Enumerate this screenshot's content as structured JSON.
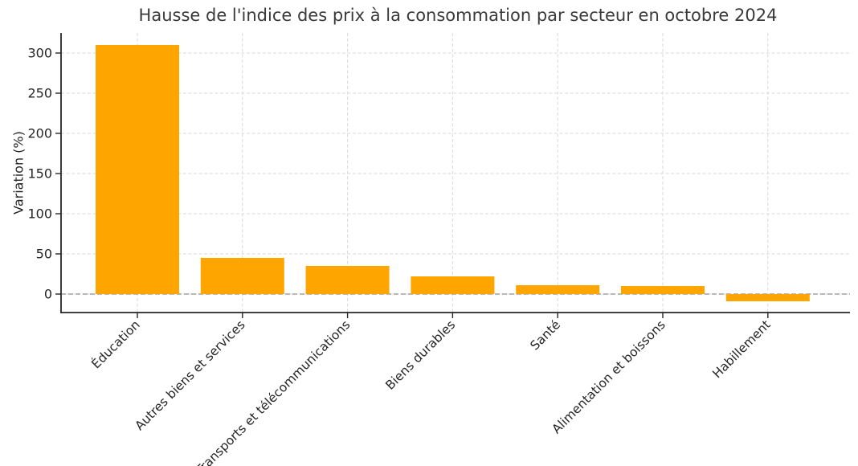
{
  "chart_data": {
    "type": "bar",
    "title": "Hausse de l'indice des prix à la consommation par secteur en octobre 2024",
    "ylabel": "Variation (%)",
    "categories": [
      "Éducation",
      "Autres biens et services",
      "Transports et télécommunications",
      "Biens durables",
      "Santé",
      "Alimentation et boissons",
      "Habillement"
    ],
    "values": [
      310,
      45,
      35,
      22,
      11,
      10,
      -9
    ],
    "yticks": [
      0,
      50,
      100,
      150,
      200,
      250,
      300
    ],
    "ylim": [
      -23,
      325
    ],
    "bar_color": "#FFA500",
    "grid": "dashed-both-axes",
    "zero_line": true,
    "legend": "none",
    "x_tick_label_rotation_deg": 45
  },
  "style": {
    "background": "#ffffff",
    "grid_color": "#d9d9d9",
    "zero_line_color": "#8f8f8f",
    "axis_color": "#262626",
    "title_color": "#3a3a3a",
    "tick_text_color": "#262626"
  }
}
